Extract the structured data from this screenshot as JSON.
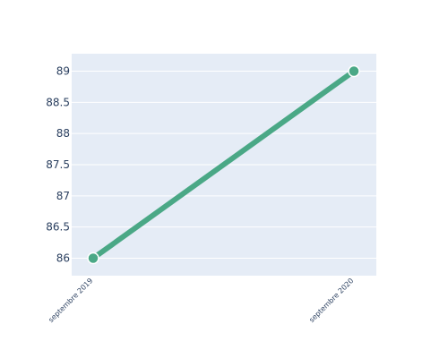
{
  "chart_data": {
    "type": "line",
    "x": [
      "septembre 2019",
      "septembre 2020"
    ],
    "series": [
      {
        "values": [
          86,
          89
        ]
      }
    ],
    "yticks": [
      "86",
      "86.5",
      "87",
      "87.5",
      "88",
      "88.5",
      "89"
    ],
    "ylim": [
      85.72,
      89.28
    ],
    "grid": true,
    "colors": {
      "plot_background": "#e5ecf6",
      "gridline": "#ffffff",
      "line": "#4aa886",
      "marker_outline": "#ffffff",
      "text": "#2a3f5f"
    }
  }
}
